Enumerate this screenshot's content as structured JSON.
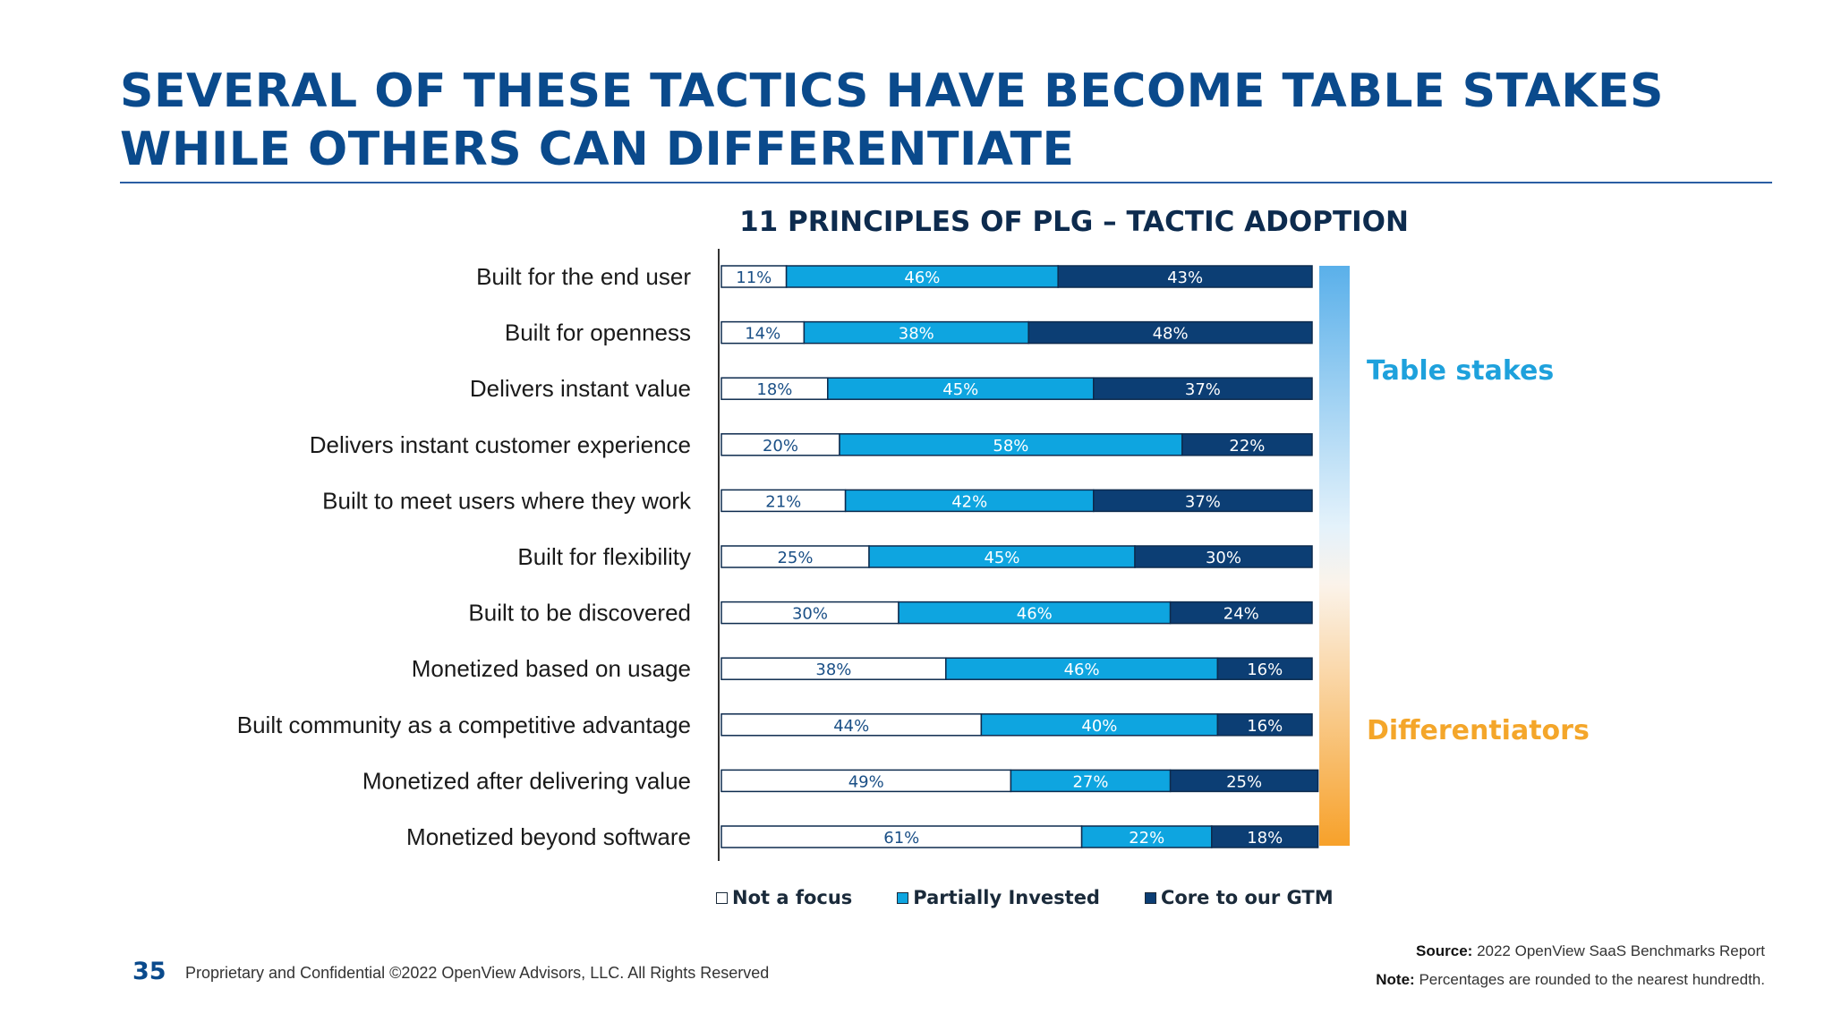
{
  "slide": {
    "title_lines": [
      "SEVERAL OF THESE TACTICS HAVE BECOME TABLE STAKES",
      "WHILE OTHERS CAN DIFFERENTIATE"
    ],
    "page_number": "35",
    "footer": "Proprietary and Confidential ©2022 OpenView Advisors, LLC. All Rights Reserved",
    "source_label": "Source:",
    "source_text": "2022 OpenView SaaS Benchmarks Report",
    "note_label": "Note:",
    "note_text": "Percentages are rounded to the nearest hundredth."
  },
  "colors": {
    "title": "#0a4a8c",
    "not_a_focus": "#ffffff",
    "partially_invested": "#0ea5e0",
    "core_to_gtm": "#0c3e74",
    "table_stakes": "#1ea1dc",
    "differentiators": "#f4a62a"
  },
  "chart_data": {
    "type": "bar",
    "orientation": "horizontal",
    "stacked": true,
    "title": "11 PRINCIPLES OF PLG – TACTIC ADOPTION",
    "categories": [
      "Built for the end user",
      "Built for openness",
      "Delivers instant value",
      "Delivers instant customer experience",
      "Built to meet users where they work",
      "Built for flexibility",
      "Built to be discovered",
      "Monetized based on usage",
      "Built community as a competitive advantage",
      "Monetized after delivering value",
      "Monetized beyond software"
    ],
    "series": [
      {
        "name": "Not a focus",
        "values": [
          11,
          14,
          18,
          20,
          21,
          25,
          30,
          38,
          44,
          49,
          61
        ]
      },
      {
        "name": "Partially Invested",
        "values": [
          46,
          38,
          45,
          58,
          42,
          45,
          46,
          46,
          40,
          27,
          22
        ]
      },
      {
        "name": "Core to our GTM",
        "values": [
          43,
          48,
          37,
          22,
          37,
          30,
          24,
          16,
          16,
          25,
          18
        ]
      }
    ],
    "value_suffix": "%",
    "xlim": [
      0,
      100
    ],
    "legend": "bottom",
    "grid": false,
    "scale_labels": {
      "top": "Table stakes",
      "bottom": "Differentiators"
    }
  }
}
